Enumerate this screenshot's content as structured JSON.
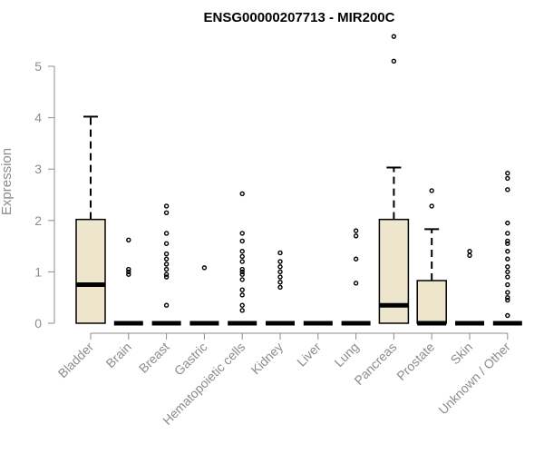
{
  "chart_data": {
    "type": "boxplot",
    "title": "ENSG00000207713 - MIR200C",
    "ylabel": "Expression",
    "xlabel": "",
    "ylim": [
      0,
      5.5
    ],
    "yticks": [
      0,
      1,
      2,
      3,
      4,
      5
    ],
    "grid": false,
    "box_color": "#ede6cc",
    "categories": [
      "Bladder",
      "Brain",
      "Breast",
      "Gastric",
      "Hematopoietic cells",
      "Kidney",
      "Liver",
      "Lung",
      "Pancreas",
      "Prostate",
      "Skin",
      "Unknown / Other"
    ],
    "boxes": [
      {
        "q1": 0,
        "median": 0.75,
        "q3": 2.02,
        "whisker_low": 0,
        "whisker_high": 4.02,
        "outliers": []
      },
      {
        "q1": 0,
        "median": 0,
        "q3": 0,
        "whisker_low": 0,
        "whisker_high": 0,
        "outliers": [
          1.62,
          1.05,
          1.0,
          0.95
        ]
      },
      {
        "q1": 0,
        "median": 0,
        "q3": 0,
        "whisker_low": 0,
        "whisker_high": 0,
        "outliers": [
          2.28,
          2.15,
          1.75,
          1.55,
          1.35,
          1.25,
          1.15,
          1.05,
          0.95,
          0.9,
          0.35
        ]
      },
      {
        "q1": 0,
        "median": 0,
        "q3": 0,
        "whisker_low": 0,
        "whisker_high": 0,
        "outliers": [
          1.08
        ]
      },
      {
        "q1": 0,
        "median": 0,
        "q3": 0,
        "whisker_low": 0,
        "whisker_high": 0,
        "outliers": [
          2.52,
          1.75,
          1.6,
          1.4,
          1.3,
          1.2,
          1.05,
          1.0,
          0.95,
          0.85,
          0.65,
          0.55,
          0.35,
          0.25
        ]
      },
      {
        "q1": 0,
        "median": 0,
        "q3": 0,
        "whisker_low": 0,
        "whisker_high": 0,
        "outliers": [
          1.37,
          1.2,
          1.1,
          1.0,
          0.9,
          0.8,
          0.7
        ]
      },
      {
        "q1": 0,
        "median": 0,
        "q3": 0,
        "whisker_low": 0,
        "whisker_high": 0,
        "outliers": []
      },
      {
        "q1": 0,
        "median": 0,
        "q3": 0,
        "whisker_low": 0,
        "whisker_high": 0,
        "outliers": [
          1.8,
          1.7,
          1.25,
          0.78
        ]
      },
      {
        "q1": 0,
        "median": 0.35,
        "q3": 2.02,
        "whisker_low": 0,
        "whisker_high": 3.03,
        "outliers": [
          5.58,
          5.1
        ]
      },
      {
        "q1": 0,
        "median": 0,
        "q3": 0.83,
        "whisker_low": 0,
        "whisker_high": 1.83,
        "outliers": [
          2.58,
          2.28
        ]
      },
      {
        "q1": 0,
        "median": 0,
        "q3": 0,
        "whisker_low": 0,
        "whisker_high": 0,
        "outliers": [
          1.4,
          1.32
        ]
      },
      {
        "q1": 0,
        "median": 0,
        "q3": 0,
        "whisker_low": 0,
        "whisker_high": 0,
        "outliers": [
          2.92,
          2.82,
          2.6,
          1.95,
          1.75,
          1.6,
          1.55,
          1.4,
          1.25,
          1.1,
          1.0,
          0.9,
          0.75,
          0.6,
          0.5,
          0.45,
          0.15
        ]
      }
    ]
  }
}
